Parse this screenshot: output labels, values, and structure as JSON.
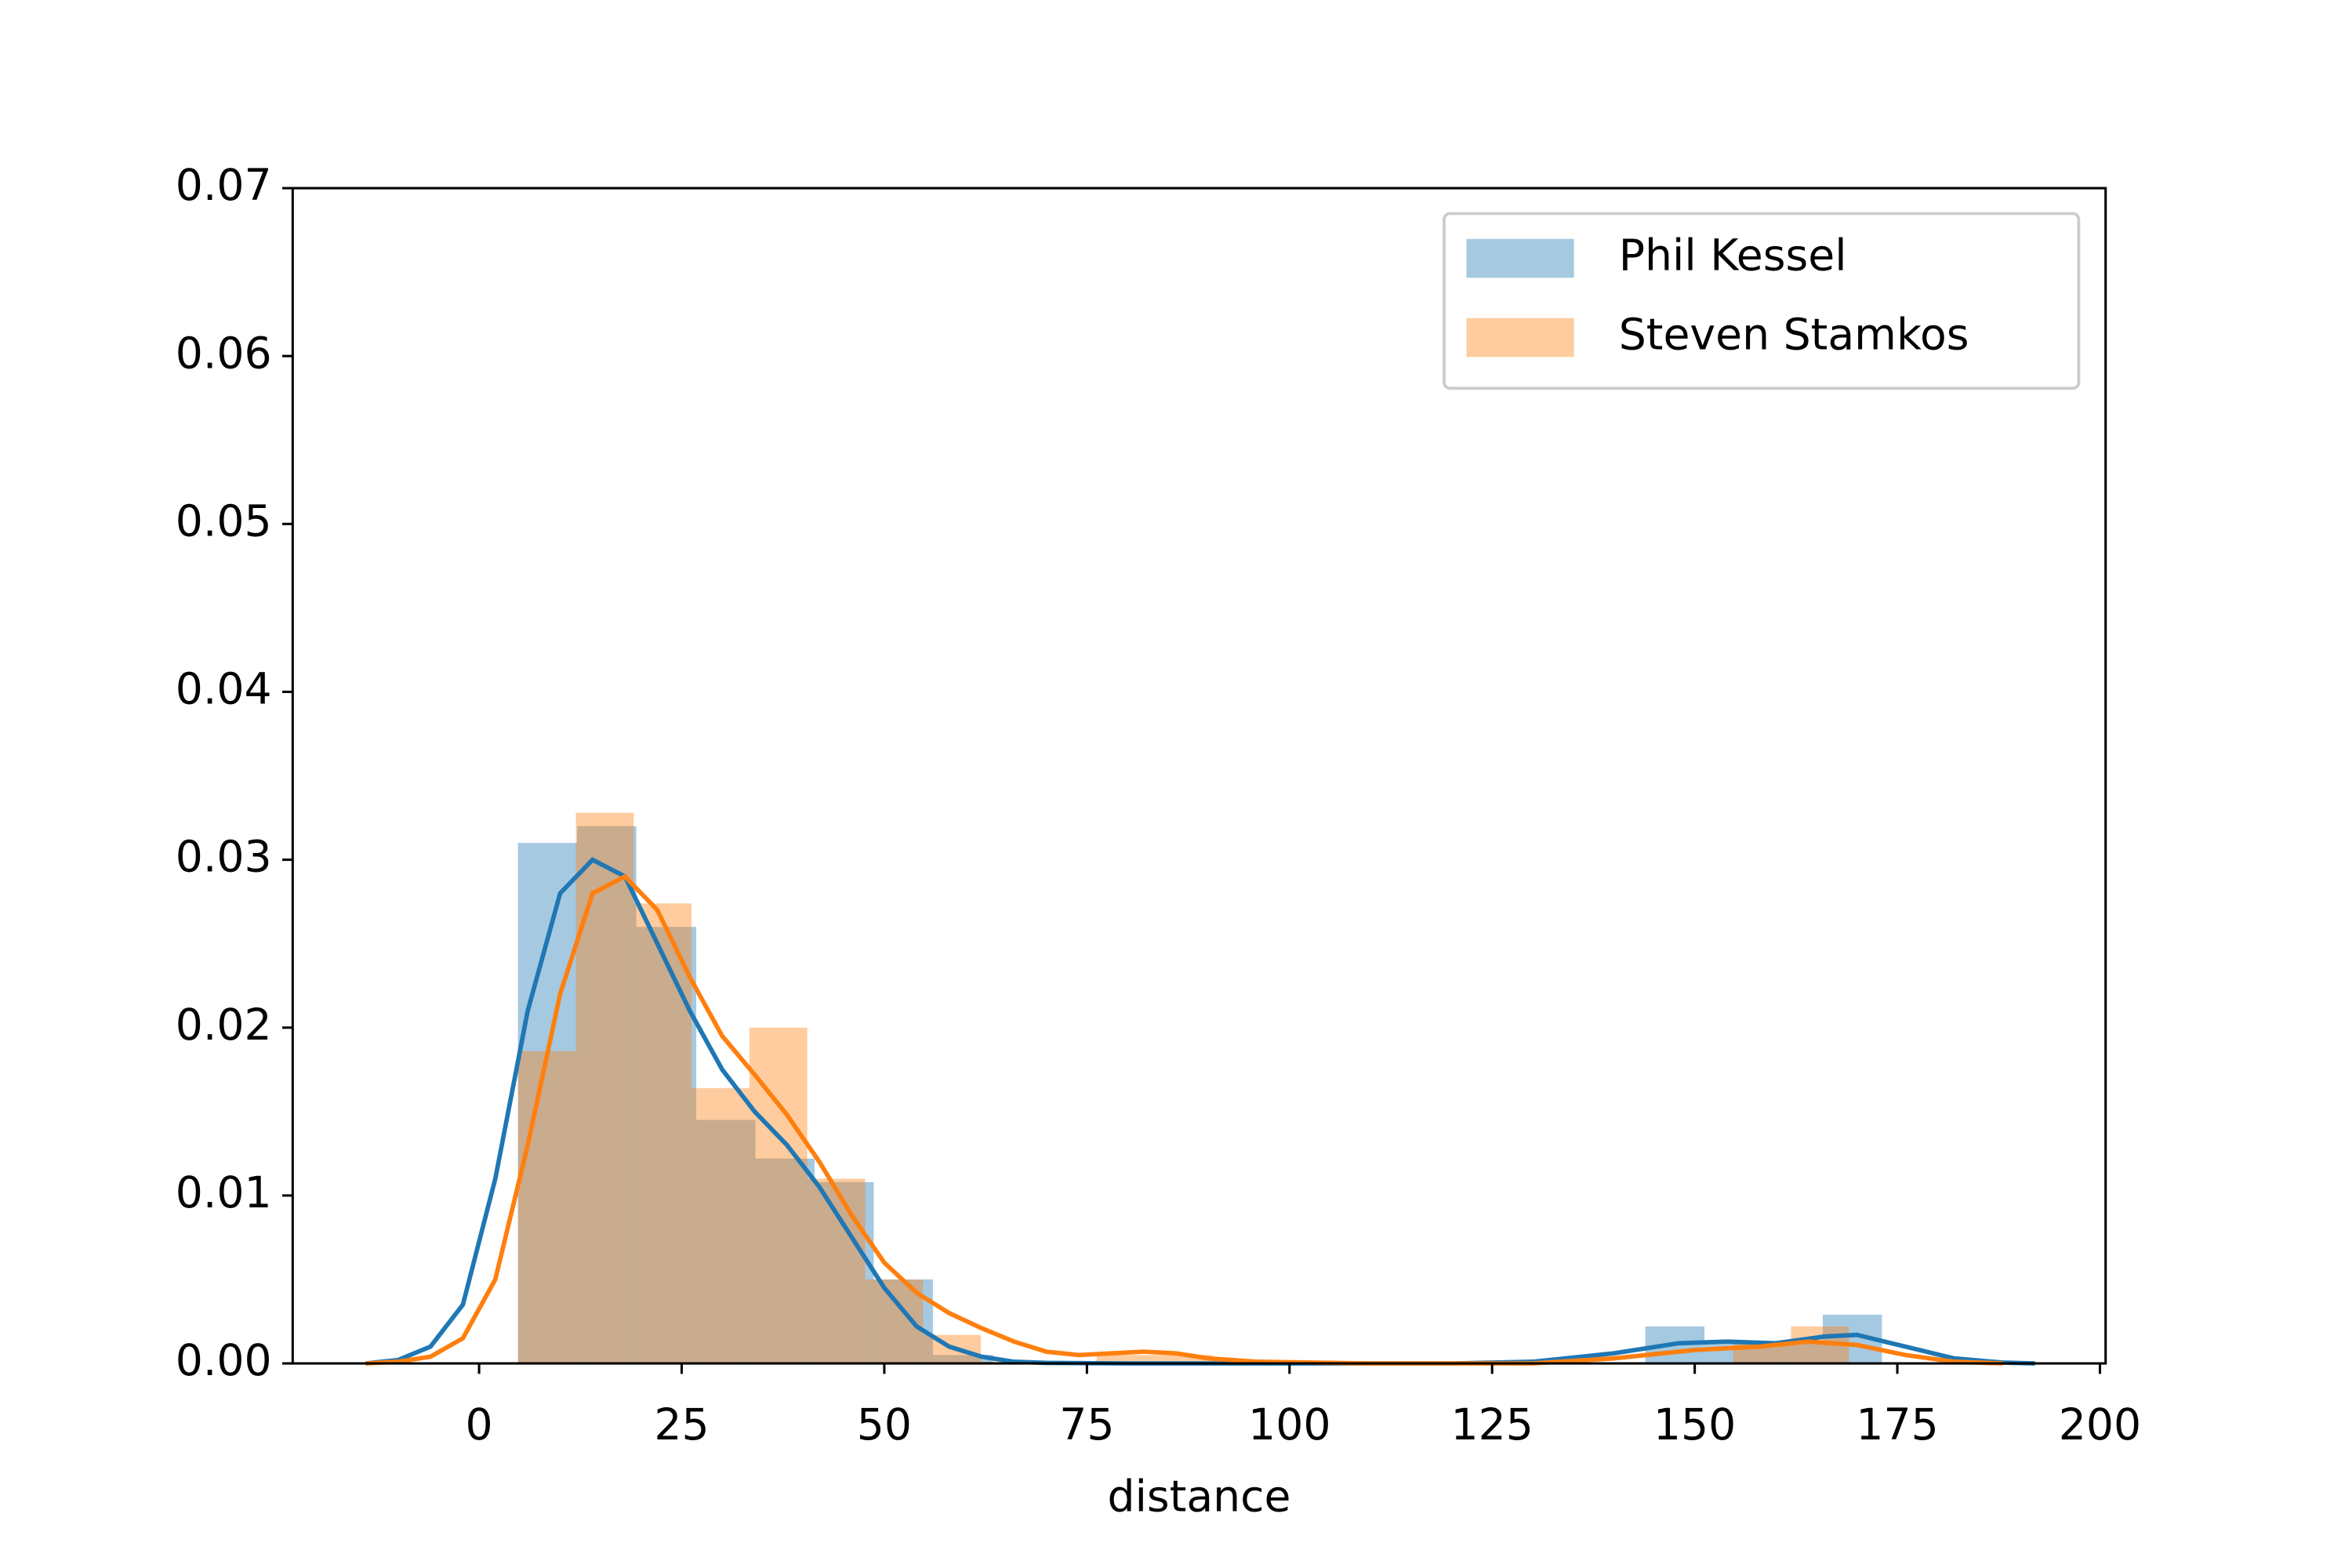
{
  "chart_data": {
    "type": "histogram",
    "xlabel": "distance",
    "xlim": [
      -23,
      200.7
    ],
    "ylim": [
      0,
      0.07
    ],
    "xticks": [
      0,
      25,
      50,
      75,
      100,
      125,
      150,
      175,
      200
    ],
    "yticks": [
      {
        "value": 0,
        "label": "0.00"
      },
      0.01,
      0.02,
      0.03,
      0.04,
      0.05,
      0.06,
      0.07
    ],
    "legend": "upper right",
    "series": [
      {
        "name": "Phil Kessel",
        "color": "#1f77b4",
        "bins": [
          4.8,
          12.1,
          19.4,
          26.8,
          34.1,
          41.4,
          48.7,
          56.0,
          63.4,
          70.7,
          78.0,
          85.3,
          92.6,
          100.0,
          107.3,
          114.6,
          121.9,
          129.2,
          136.6,
          143.9,
          151.2,
          158.5,
          165.8,
          173.1
        ],
        "values": [
          0.031,
          0.032,
          0.026,
          0.0145,
          0.0122,
          0.0108,
          0.005,
          0.0005,
          0,
          0,
          0,
          0,
          0,
          0,
          0,
          0,
          0,
          0,
          0,
          0.0022,
          0.0012,
          0.0012,
          0.0029
        ],
        "kde_x": [
          -14,
          -10,
          -6,
          -2,
          2,
          6,
          10,
          14,
          18,
          22,
          26,
          30,
          34,
          38,
          42,
          46,
          50,
          54,
          58,
          62,
          66,
          70,
          80,
          100,
          120,
          130,
          140,
          148,
          154,
          160,
          166,
          170,
          176,
          182,
          188,
          192
        ],
        "kde_y": [
          0,
          0.0002,
          0.001,
          0.0035,
          0.011,
          0.021,
          0.028,
          0.03,
          0.029,
          0.025,
          0.021,
          0.0175,
          0.015,
          0.013,
          0.0105,
          0.0075,
          0.0045,
          0.0022,
          0.001,
          0.0004,
          0.0001,
          3e-05,
          0,
          0,
          0,
          0.0001,
          0.0006,
          0.0012,
          0.0013,
          0.0012,
          0.0016,
          0.0017,
          0.001,
          0.0003,
          5e-05,
          0
        ]
      },
      {
        "name": "Steven Stamkos",
        "color": "#ff7f0e",
        "bins": [
          4.8,
          11.94,
          19.08,
          26.22,
          33.36,
          40.5,
          47.64,
          54.78,
          61.92,
          69.06,
          76.2,
          83.34,
          90.48,
          97.62,
          104.76,
          111.9,
          119.04,
          126.18,
          133.32,
          140.46,
          147.6,
          154.74,
          161.88,
          169.02
        ],
        "values": [
          0.0186,
          0.0328,
          0.0274,
          0.0164,
          0.02,
          0.011,
          0.005,
          0.0017,
          0.0001,
          0,
          0.0005,
          0.0005,
          0,
          0,
          0,
          0,
          0,
          0,
          0,
          0,
          0,
          0.0012,
          0.0022
        ],
        "kde_x": [
          -14,
          -10,
          -6,
          -2,
          2,
          6,
          10,
          14,
          18,
          22,
          26,
          30,
          34,
          38,
          42,
          46,
          50,
          54,
          58,
          62,
          66,
          70,
          74,
          78,
          82,
          86,
          90,
          96,
          110,
          130,
          140,
          150,
          158,
          164,
          170,
          176,
          182,
          188
        ],
        "kde_y": [
          0,
          0.0001,
          0.0004,
          0.0015,
          0.005,
          0.013,
          0.022,
          0.028,
          0.029,
          0.027,
          0.023,
          0.0195,
          0.0172,
          0.0148,
          0.012,
          0.0088,
          0.006,
          0.0042,
          0.003,
          0.0021,
          0.0013,
          0.0007,
          0.0005,
          0.0006,
          0.0007,
          0.0006,
          0.0003,
          0.0001,
          0,
          0,
          0.0003,
          0.0008,
          0.001,
          0.0013,
          0.0011,
          0.0005,
          0.0001,
          0
        ]
      }
    ]
  }
}
